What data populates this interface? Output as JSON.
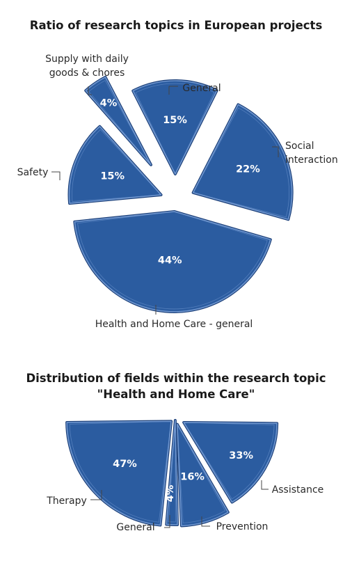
{
  "chart_data": [
    {
      "type": "pie",
      "title": "Ratio of research topics in European projects",
      "slices": [
        {
          "label": "Supply with daily goods & chores",
          "value": 4,
          "value_label": "4%"
        },
        {
          "label": "General",
          "value": 15,
          "value_label": "15%"
        },
        {
          "label": "Social interaction",
          "value": 22,
          "value_label": "22%"
        },
        {
          "label": "Health and Home Care - general",
          "value": 44,
          "value_label": "44%"
        },
        {
          "label": "Safety",
          "value": 15,
          "value_label": "15%"
        }
      ],
      "colors": {
        "fill": "#2b5ca0",
        "edge": "#1b3f78",
        "highlight": "#6f96cf"
      }
    },
    {
      "type": "pie",
      "title": "Distribution of fields within the research topic \"Health and Home Care\"",
      "slices": [
        {
          "label": "Therapy",
          "value": 47,
          "value_label": "47%"
        },
        {
          "label": "General",
          "value": 4,
          "value_label": "4%"
        },
        {
          "label": "Prevention",
          "value": 16,
          "value_label": "16%"
        },
        {
          "label": "Assistance",
          "value": 33,
          "value_label": "33%"
        }
      ],
      "colors": {
        "fill": "#2b5ca0",
        "edge": "#1b3f78",
        "highlight": "#6f96cf"
      }
    }
  ]
}
